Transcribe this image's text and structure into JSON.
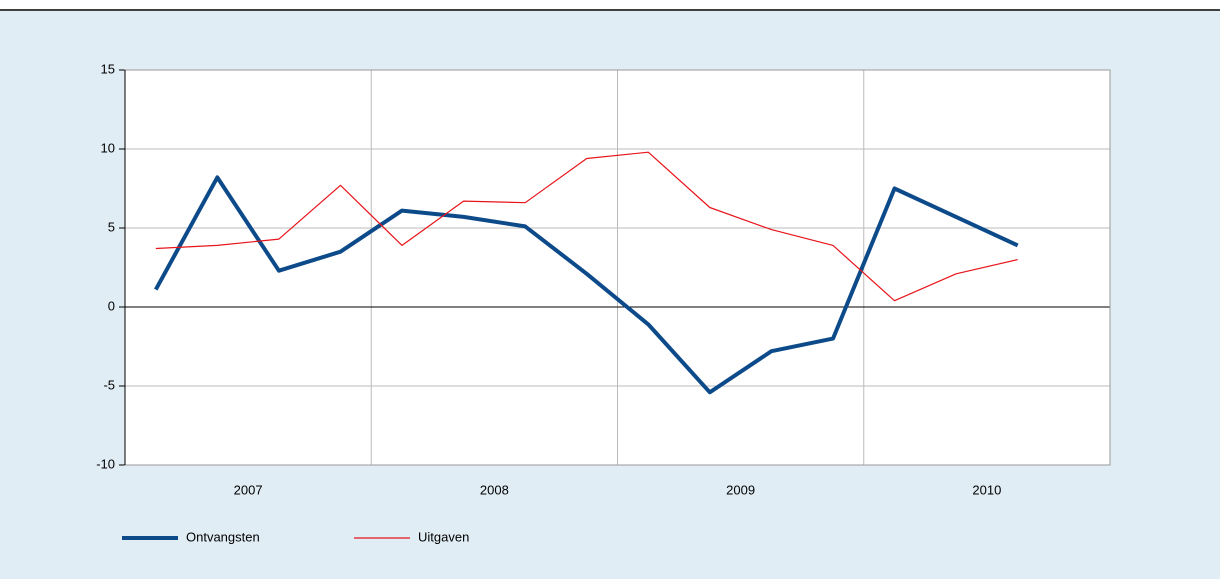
{
  "chart_data": {
    "type": "line",
    "year_labels": [
      "2007",
      "2008",
      "2009",
      "2010"
    ],
    "series": [
      {
        "name": "Ontvangsten",
        "color": "#0d4a8a",
        "width": 4,
        "values": [
          1.1,
          8.2,
          2.3,
          3.5,
          6.1,
          5.7,
          5.1,
          2.1,
          -1.1,
          -5.4,
          -2.8,
          -2.0,
          7.5,
          5.7,
          3.9
        ]
      },
      {
        "name": "Uitgaven",
        "color": "#e8141a",
        "width": 1.2,
        "values": [
          3.7,
          3.9,
          4.3,
          7.7,
          3.9,
          6.7,
          6.6,
          9.4,
          9.8,
          6.3,
          4.9,
          3.9,
          0.4,
          2.1,
          3.0
        ]
      }
    ],
    "ylim": [
      -10,
      15
    ],
    "yticks": [
      -10,
      -5,
      0,
      5,
      10,
      15
    ],
    "grid": true
  }
}
